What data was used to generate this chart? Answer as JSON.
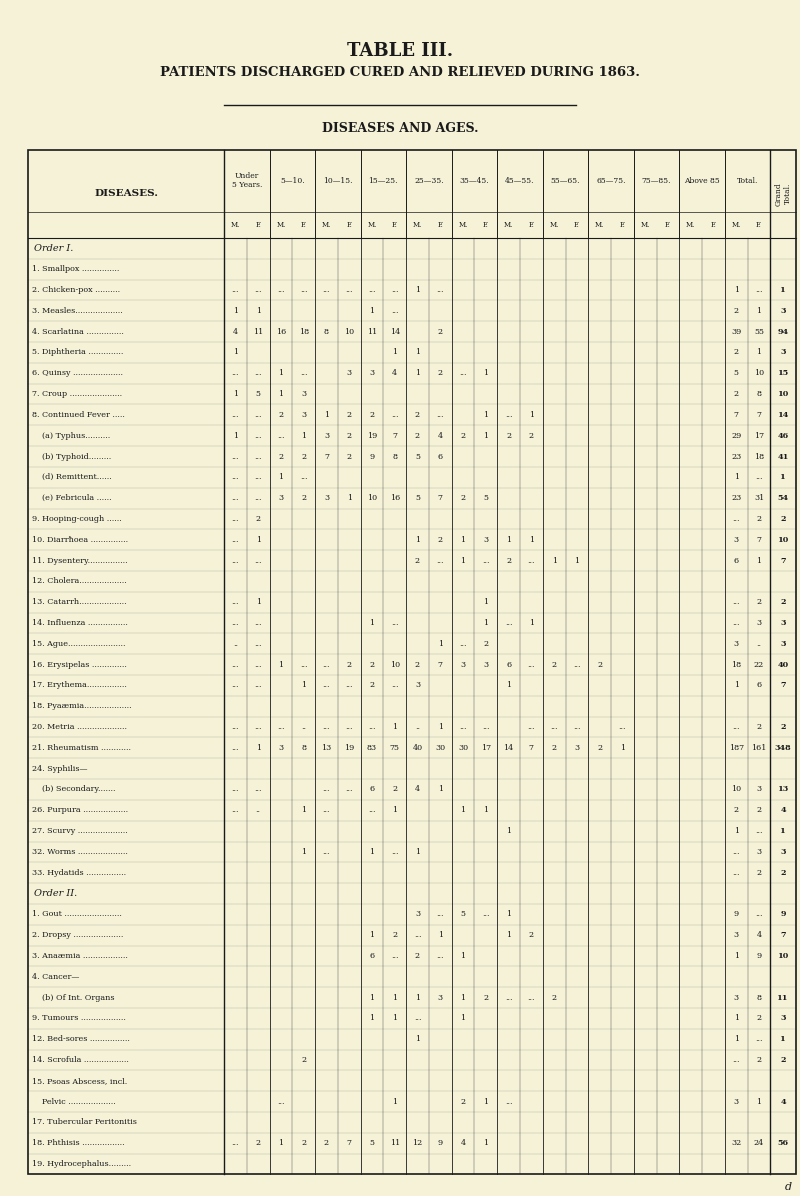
{
  "title": "TABLE III.",
  "subtitle": "PATIENTS DISCHARGED CURED AND RELIEVED DURING 1863.",
  "subtitle2": "DISEASES AND AGES.",
  "bg_color": "#f5f2d8",
  "text_color": "#1a1a1a",
  "age_groups_short": [
    "Under\n5 Years.",
    "5—10.",
    "10—15.",
    "15—25.",
    "25—35.",
    "35—45.",
    "45—55.",
    "55—65.",
    "65—75.",
    "75—85.",
    "Above 85",
    "Total."
  ],
  "rows": [
    {
      "label": "Order I.",
      "order_label": true,
      "data": []
    },
    {
      "label": "1. Smallpox ...............",
      "data": [
        "",
        "",
        "",
        "",
        "",
        "",
        "",
        "",
        "",
        "",
        "",
        "",
        "",
        "",
        "",
        "",
        "",
        "",
        "",
        "",
        "",
        "",
        "",
        "",
        ""
      ]
    },
    {
      "label": "2. Chicken-pox ..........",
      "data": [
        "...",
        "...",
        "...",
        "...",
        "...",
        "...",
        "...",
        "...",
        "1",
        "...",
        "",
        "",
        "",
        "",
        "",
        "",
        "",
        "",
        "",
        "",
        "",
        "",
        "1",
        "...",
        "1"
      ]
    },
    {
      "label": "3. Measles...................",
      "data": [
        "1",
        "1",
        "",
        "",
        "",
        "",
        "1",
        "...",
        "",
        "",
        "",
        "",
        "",
        "",
        "",
        "",
        "",
        "",
        "",
        "",
        "",
        "",
        "2",
        "1",
        "3"
      ]
    },
    {
      "label": "4. Scarlatina ...............",
      "data": [
        "4",
        "11",
        "16",
        "18",
        "8",
        "10",
        "11",
        "14",
        "",
        "2",
        "",
        "",
        "",
        "",
        "",
        "",
        "",
        "",
        "",
        "",
        "",
        "",
        "39",
        "55",
        "94"
      ]
    },
    {
      "label": "5. Diphtheria ..............",
      "data": [
        "1",
        "",
        "",
        "",
        "",
        "",
        "",
        "1",
        "1",
        "",
        "",
        "",
        "",
        "",
        "",
        "",
        "",
        "",
        "",
        "",
        "",
        "",
        "2",
        "1",
        "3"
      ]
    },
    {
      "label": "6. Quinsy ....................",
      "data": [
        "...",
        "...",
        "1",
        "...",
        "",
        "3",
        "3",
        "4",
        "1",
        "2",
        "...",
        "1",
        "",
        "",
        "",
        "",
        "",
        "",
        "",
        "",
        "",
        "",
        "5",
        "10",
        "15"
      ]
    },
    {
      "label": "7. Croup .....................",
      "data": [
        "1",
        "5",
        "1",
        "3",
        "",
        "",
        "",
        "",
        "",
        "",
        "",
        "",
        "",
        "",
        "",
        "",
        "",
        "",
        "",
        "",
        "",
        "",
        "2",
        "8",
        "10"
      ]
    },
    {
      "label": "8. Continued Fever .....",
      "data": [
        "...",
        "...",
        "2",
        "3",
        "1",
        "2",
        "2",
        "...",
        "2",
        "...",
        "",
        "1",
        "...",
        "1",
        "",
        "",
        "",
        "",
        "",
        "",
        "",
        "",
        "7",
        "7",
        "14"
      ]
    },
    {
      "label": "    (a) Typhus..........",
      "data": [
        "1",
        "...",
        "...",
        "1",
        "3",
        "2",
        "19",
        "7",
        "2",
        "4",
        "2",
        "1",
        "2",
        "2",
        "",
        "",
        "",
        "",
        "",
        "",
        "",
        "",
        "29",
        "17",
        "46"
      ]
    },
    {
      "label": "    (b) Typhoid.........",
      "data": [
        "...",
        "...",
        "2",
        "2",
        "7",
        "2",
        "9",
        "8",
        "5",
        "6",
        "",
        "",
        "",
        "",
        "",
        "",
        "",
        "",
        "",
        "",
        "",
        "",
        "23",
        "18",
        "41"
      ]
    },
    {
      "label": "    (d) Remittent......",
      "data": [
        "...",
        "...",
        "1",
        "...",
        "",
        "",
        "",
        "",
        "",
        "",
        "",
        "",
        "",
        "",
        "",
        "",
        "",
        "",
        "",
        "",
        "",
        "",
        "1",
        "...",
        "1"
      ]
    },
    {
      "label": "    (e) Febricula ......",
      "data": [
        "...",
        "...",
        "3",
        "2",
        "3",
        "1",
        "10",
        "16",
        "5",
        "7",
        "2",
        "5",
        "",
        "",
        "",
        "",
        "",
        "",
        "",
        "",
        "",
        "",
        "23",
        "31",
        "54"
      ]
    },
    {
      "label": "9. Hooping-cough ......",
      "data": [
        "...",
        "2",
        "",
        "",
        "",
        "",
        "",
        "",
        "",
        "",
        "",
        "",
        "",
        "",
        "",
        "",
        "",
        "",
        "",
        "",
        "",
        "",
        "...",
        "2",
        "2"
      ]
    },
    {
      "label": "10. Diarrħoea ...............",
      "data": [
        "...",
        "1",
        "",
        "",
        "",
        "",
        "",
        "",
        "1",
        "2",
        "1",
        "3",
        "1",
        "1",
        "",
        "",
        "",
        "",
        "",
        "",
        "",
        "",
        "3",
        "7",
        "10"
      ]
    },
    {
      "label": "11. Dysentery................",
      "data": [
        "...",
        "...",
        "",
        "",
        "",
        "",
        "",
        "",
        "2",
        "...",
        "1",
        "...",
        "2",
        "...",
        "1",
        "1",
        "",
        "",
        "",
        "",
        "",
        "",
        "6",
        "1",
        "7"
      ]
    },
    {
      "label": "12. Cholera...................",
      "data": [
        "",
        "",
        "",
        "",
        "",
        "",
        "",
        "",
        "",
        "",
        "",
        "",
        "",
        "",
        "",
        "",
        "",
        "",
        "",
        "",
        "",
        "",
        "",
        "",
        ""
      ]
    },
    {
      "label": "13. Catarrh...................",
      "data": [
        "...",
        "1",
        "",
        "",
        "",
        "",
        "",
        "",
        "",
        "",
        "",
        "1",
        "",
        "",
        "",
        "",
        "",
        "",
        "",
        "",
        "",
        "",
        "...",
        "2",
        "2"
      ]
    },
    {
      "label": "14. Influenza ................",
      "data": [
        "...",
        "...",
        "",
        "",
        "",
        "",
        "1",
        "...",
        "",
        "",
        "",
        "1",
        "...",
        "1",
        "",
        "",
        "",
        "",
        "",
        "",
        "",
        "",
        "...",
        "3",
        "3"
      ]
    },
    {
      "label": "15. Ague.......................",
      "data": [
        "..",
        "...",
        "",
        "",
        "",
        "",
        "",
        "",
        "",
        "1",
        "...",
        "2",
        "",
        "",
        "",
        "",
        "",
        "",
        "",
        "",
        "",
        "",
        "3",
        "..",
        "3"
      ]
    },
    {
      "label": "16. Erysipelas ..............",
      "data": [
        "...",
        "...",
        "1",
        "...",
        "...",
        "2",
        "2",
        "10",
        "2",
        "7",
        "3",
        "3",
        "6",
        "...",
        "2",
        "...",
        "2",
        "",
        "",
        "",
        "",
        "",
        "18",
        "22",
        "40"
      ]
    },
    {
      "label": "17. Erythema................",
      "data": [
        "...",
        "...",
        "",
        "1",
        "...",
        "...",
        "2",
        "...",
        "3",
        "",
        "",
        "",
        "1",
        "",
        "",
        "",
        "",
        "",
        "",
        "",
        "",
        "",
        "1",
        "6",
        "7"
      ]
    },
    {
      "label": "18. Pyaæmia...................",
      "data": [
        "",
        "",
        "",
        "",
        "",
        "",
        "",
        "",
        "",
        "",
        "",
        "",
        "",
        "",
        "",
        "",
        "",
        "",
        "",
        "",
        "",
        "",
        "",
        "",
        ""
      ]
    },
    {
      "label": "20. Metria ....................",
      "data": [
        "...",
        "...",
        "...",
        "..",
        "...",
        "...",
        "...",
        "1",
        "..",
        "1",
        "...",
        "...",
        "",
        "...",
        "...",
        "...",
        "",
        "...",
        "",
        "",
        "",
        "",
        "...",
        "2",
        "2"
      ]
    },
    {
      "label": "21. Rheumatism ............",
      "data": [
        "...",
        "1",
        "3",
        "8",
        "13",
        "19",
        "83",
        "75",
        "40",
        "30",
        "30",
        "17",
        "14",
        "7",
        "2",
        "3",
        "2",
        "1",
        "",
        "",
        "",
        "",
        "187",
        "161",
        "348"
      ]
    },
    {
      "label": "24. Syphilis—",
      "data": []
    },
    {
      "label": "    (b) Secondary.......",
      "data": [
        "...",
        "...",
        "",
        "",
        "...",
        "...",
        "6",
        "2",
        "4",
        "1",
        "",
        "",
        "",
        "",
        "",
        "",
        "",
        "",
        "",
        "",
        "",
        "",
        "10",
        "3",
        "13"
      ]
    },
    {
      "label": "26. Purpura ..................",
      "data": [
        "...",
        "..",
        "",
        "1",
        "...",
        "",
        "...",
        "1",
        "",
        "",
        "1",
        "1",
        "",
        "",
        "",
        "",
        "",
        "",
        "",
        "",
        "",
        "",
        "2",
        "2",
        "4"
      ]
    },
    {
      "label": "27. Scurvy ....................",
      "data": [
        "",
        "",
        "",
        "",
        "",
        "",
        "",
        "",
        "",
        "",
        "",
        "",
        "1",
        "",
        "",
        "",
        "",
        "",
        "",
        "",
        "",
        "",
        "1",
        "...",
        "1"
      ]
    },
    {
      "label": "32. Worms ....................",
      "data": [
        "",
        "",
        "",
        "1",
        "...",
        "",
        "1",
        "...",
        "1",
        "",
        "",
        "",
        "",
        "",
        "",
        "",
        "",
        "",
        "",
        "",
        "",
        "",
        "...",
        "3",
        "3"
      ]
    },
    {
      "label": "33. Hydatids ................",
      "data": [
        "",
        "",
        "",
        "",
        "",
        "",
        "",
        "",
        "",
        "",
        "",
        "",
        "",
        "",
        "",
        "",
        "",
        "",
        "",
        "",
        "",
        "",
        "...",
        "2",
        "2"
      ]
    },
    {
      "label": "Order II.",
      "order_label": true,
      "data": []
    },
    {
      "label": "1. Gout .......................",
      "data": [
        "",
        "",
        "",
        "",
        "",
        "",
        "",
        "",
        "3",
        "...",
        "5",
        "...",
        "1",
        "",
        "",
        "",
        "",
        "",
        "",
        "",
        "",
        "",
        "9",
        "...",
        "9"
      ]
    },
    {
      "label": "2. Dropsy ....................",
      "data": [
        "",
        "",
        "",
        "",
        "",
        "",
        "1",
        "2",
        "...",
        "1",
        "",
        "",
        "1",
        "2",
        "",
        "",
        "",
        "",
        "",
        "",
        "",
        "",
        "3",
        "4",
        "7"
      ]
    },
    {
      "label": "3. Anaæmia ..................",
      "data": [
        "",
        "",
        "",
        "",
        "",
        "",
        "6",
        "...",
        "2",
        "...",
        "1",
        "",
        "",
        "",
        "",
        "",
        "",
        "",
        "",
        "",
        "",
        "",
        "1",
        "9",
        "10"
      ]
    },
    {
      "label": "4. Cancer—",
      "data": []
    },
    {
      "label": "    (b) Of Int. Organs",
      "data": [
        "",
        "",
        "",
        "",
        "",
        "",
        "1",
        "1",
        "1",
        "3",
        "1",
        "2",
        "...",
        "...",
        "2",
        "",
        "",
        "",
        "",
        "",
        "",
        "",
        "3",
        "8",
        "11"
      ]
    },
    {
      "label": "9. Tumours ..................",
      "data": [
        "",
        "",
        "",
        "",
        "",
        "",
        "1",
        "1",
        "...",
        "",
        "1",
        "",
        "",
        "",
        "",
        "",
        "",
        "",
        "",
        "",
        "",
        "",
        "1",
        "2",
        "3"
      ]
    },
    {
      "label": "12. Bed-sores ................",
      "data": [
        "",
        "",
        "",
        "",
        "",
        "",
        "",
        "",
        "1",
        "",
        "",
        "",
        "",
        "",
        "",
        "",
        "",
        "",
        "",
        "",
        "",
        "",
        "1",
        "...",
        "1"
      ]
    },
    {
      "label": "14. Scrofula ..................",
      "data": [
        "",
        "",
        "",
        "2",
        "",
        "",
        "",
        "",
        "",
        "",
        "",
        "",
        "",
        "",
        "",
        "",
        "",
        "",
        "",
        "",
        "",
        "",
        "...",
        "2",
        "2"
      ]
    },
    {
      "label": "15. Psoas Abscess, incl.",
      "data": []
    },
    {
      "label": "    Pelvic ...................",
      "data": [
        "",
        "",
        "...",
        "",
        "",
        "",
        "",
        "1",
        "",
        "",
        "2",
        "1",
        "...",
        "",
        "",
        "",
        "",
        "",
        "",
        "",
        "",
        "",
        "3",
        "1",
        "4"
      ]
    },
    {
      "label": "17. Tubercular Peritonitis",
      "data": []
    },
    {
      "label": "18. Phthisis .................",
      "data": [
        "...",
        "2",
        "1",
        "2",
        "2",
        "7",
        "5",
        "11",
        "12",
        "9",
        "4",
        "1",
        "",
        "",
        "",
        "",
        "",
        "",
        "",
        "",
        "",
        "",
        "32",
        "24",
        "56"
      ]
    },
    {
      "label": "19. Hydrocephalus.........",
      "data": [
        "",
        "",
        "",
        "",
        "",
        "",
        "",
        "",
        "",
        "",
        "",
        "",
        "",
        "",
        "",
        "",
        "",
        "",
        "",
        "",
        "",
        "",
        "",
        "",
        ""
      ]
    }
  ]
}
